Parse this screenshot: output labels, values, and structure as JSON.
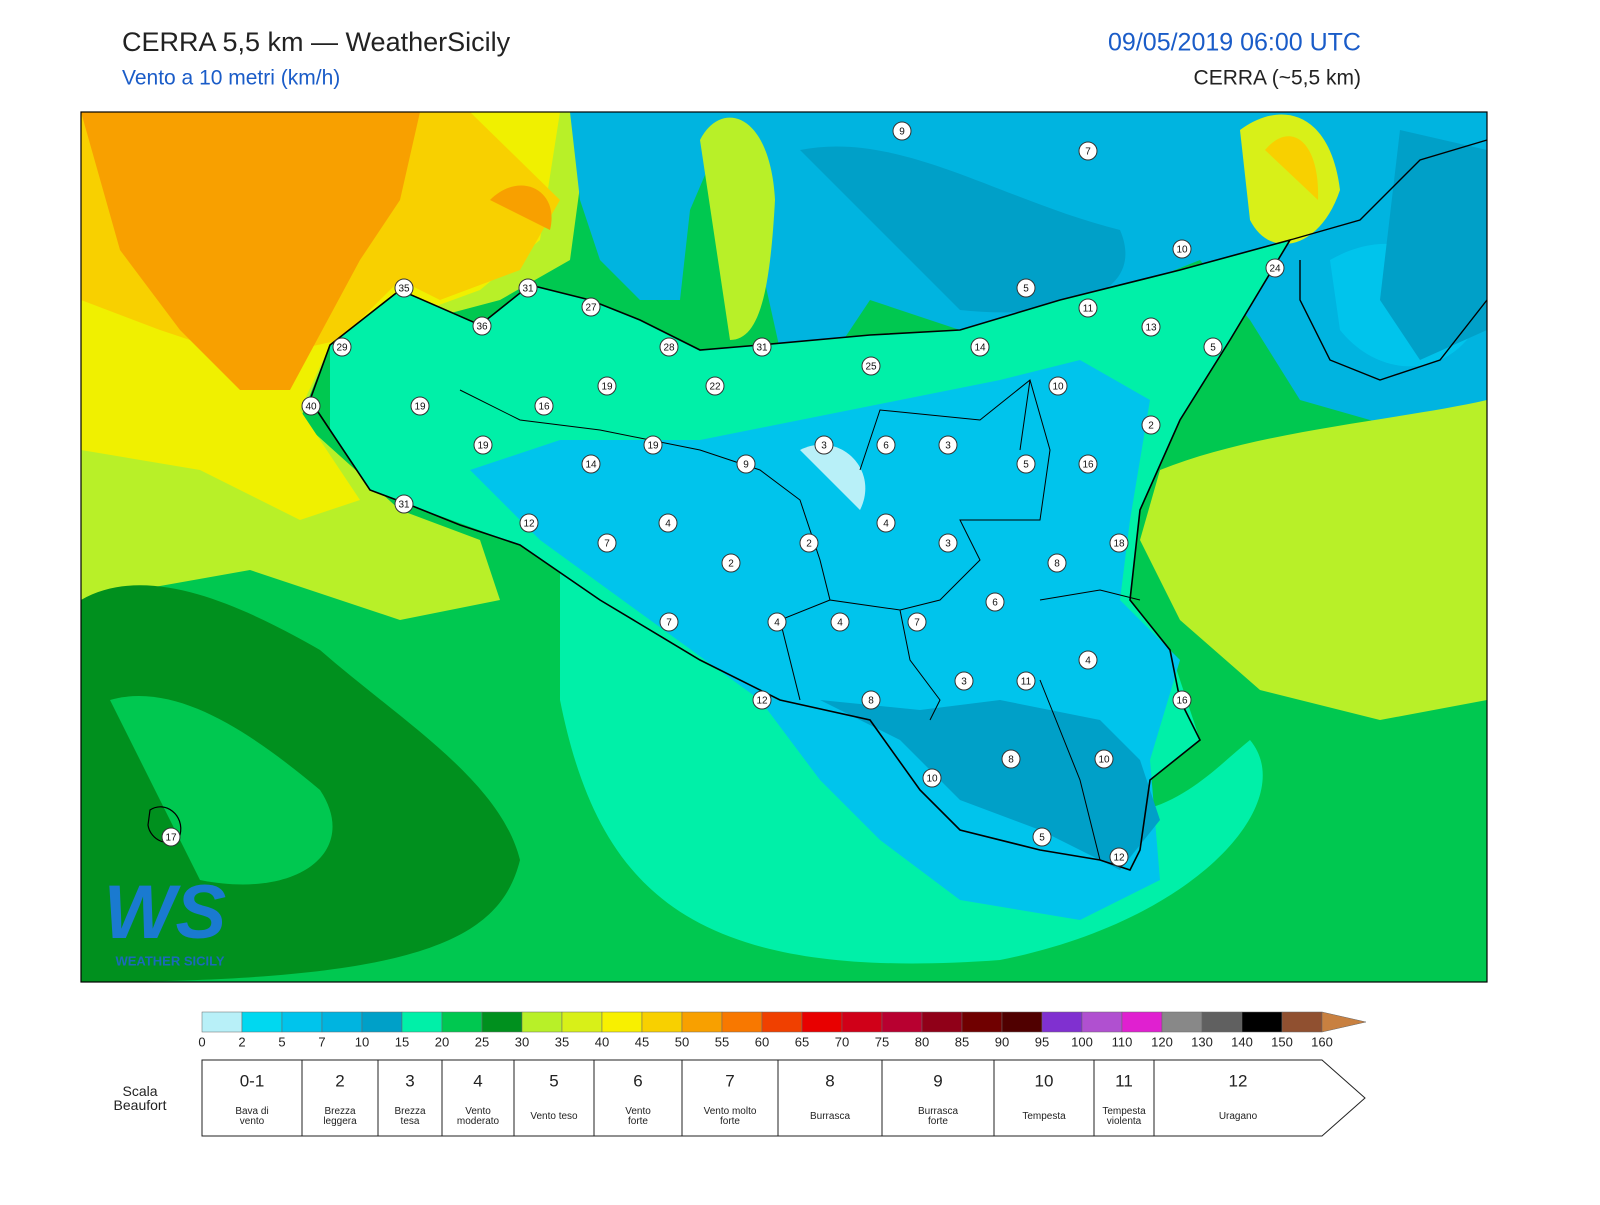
{
  "header": {
    "title": "CERRA 5,5 km — WeatherSicily",
    "subtitle": "Vento a 10 metri (km/h)",
    "datetime": "09/05/2019 06:00 UTC",
    "model": "CERRA (~5,5 km)"
  },
  "map": {
    "stations": [
      9,
      7,
      10,
      24,
      35,
      31,
      27,
      5,
      11,
      36,
      13,
      29,
      28,
      31,
      14,
      5,
      25,
      40,
      19,
      16,
      19,
      22,
      10,
      2,
      19,
      19,
      3,
      6,
      3,
      14,
      9,
      5,
      16,
      31,
      12,
      4,
      4,
      7,
      2,
      3,
      18,
      2,
      8,
      6,
      7,
      4,
      4,
      7,
      4,
      3,
      11,
      12,
      8,
      16,
      8,
      10,
      10,
      5,
      12,
      17
    ],
    "logo": {
      "initials": "WS",
      "name": "WEATHER SICILY"
    }
  },
  "colorbar": {
    "ticks": [
      0,
      2,
      5,
      7,
      10,
      15,
      20,
      25,
      30,
      35,
      40,
      45,
      50,
      55,
      60,
      65,
      70,
      75,
      80,
      85,
      90,
      95,
      100,
      110,
      120,
      130,
      140,
      150,
      160
    ],
    "colors": [
      "#b8f0f8",
      "#00d8f0",
      "#00c4ec",
      "#00b4e0",
      "#00a0c8",
      "#00f0a8",
      "#00c850",
      "#00901e",
      "#b8f028",
      "#d8f018",
      "#f8f000",
      "#f8d000",
      "#f8a000",
      "#f87800",
      "#f04000",
      "#e80000",
      "#d00018",
      "#b80030",
      "#900018",
      "#700000",
      "#500000",
      "#8030d0",
      "#b050d0",
      "#e020d0",
      "#888888",
      "#606060",
      "#000000",
      "#905030"
    ],
    "over_color": "#c88040"
  },
  "beaufort": {
    "title": "Scala\nBeaufort",
    "levels": [
      {
        "force": "0-1",
        "label": "Bava di\nvento"
      },
      {
        "force": "2",
        "label": "Brezza\nleggera"
      },
      {
        "force": "3",
        "label": "Brezza\ntesa"
      },
      {
        "force": "4",
        "label": "Vento\nmoderato"
      },
      {
        "force": "5",
        "label": "Vento teso"
      },
      {
        "force": "6",
        "label": "Vento\nforte"
      },
      {
        "force": "7",
        "label": "Vento molto\nforte"
      },
      {
        "force": "8",
        "label": "Burrasca"
      },
      {
        "force": "9",
        "label": "Burrasca\nforte"
      },
      {
        "force": "10",
        "label": "Tempesta"
      },
      {
        "force": "11",
        "label": "Tempesta\nviolenta"
      },
      {
        "force": "12",
        "label": "Uragano"
      }
    ]
  }
}
